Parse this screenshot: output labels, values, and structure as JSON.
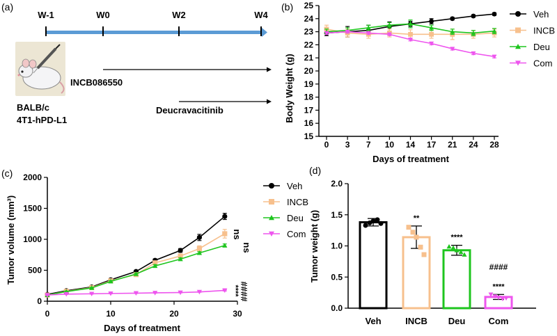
{
  "panel_labels": {
    "a": "(a)",
    "b": "(b)",
    "c": "(c)",
    "d": "(d)"
  },
  "colors": {
    "veh": "#000000",
    "incb": "#f7c08d",
    "deu": "#1ec51e",
    "com": "#ee55ee",
    "timeline": "#5b9bd5"
  },
  "icons": {
    "mouse": "mouse-with-syringe-icon"
  },
  "panel_a": {
    "timeline_labels": [
      "W-1",
      "W0",
      "W2",
      "W4"
    ],
    "mouse_text": [
      "BALB/c",
      "4T1-hPD-L1"
    ],
    "drug1": "INCB086550",
    "drug2": "Deucravacitinib"
  },
  "chart_data": [
    {
      "id": "b",
      "type": "line",
      "title": "",
      "xlabel": "Days of treatment",
      "ylabel": "Body Weight (g)",
      "x": [
        0,
        3,
        7,
        10,
        14,
        17,
        21,
        24,
        28
      ],
      "xticks": [
        "0",
        "3",
        "7",
        "10",
        "14",
        "17",
        "21",
        "24",
        "28"
      ],
      "ylim": [
        15,
        25
      ],
      "yticks": [
        15,
        16,
        17,
        18,
        19,
        20,
        21,
        22,
        23,
        24,
        25
      ],
      "legend": "right",
      "series": [
        {
          "name": "Veh",
          "values": [
            22.9,
            23.0,
            23.1,
            23.4,
            23.6,
            23.8,
            24.0,
            24.2,
            24.35
          ],
          "err": [
            0.2,
            0.4,
            0.4,
            0.35,
            0.2,
            0.2,
            0.1,
            0.1,
            0.1
          ]
        },
        {
          "name": "INCB",
          "values": [
            23.2,
            22.9,
            22.8,
            22.9,
            22.8,
            22.8,
            22.8,
            22.8,
            22.9
          ],
          "err": [
            0.3,
            0.3,
            0.3,
            0.3,
            0.35,
            0.3,
            0.4,
            0.3,
            0.3
          ]
        },
        {
          "name": "Deu",
          "values": [
            23.0,
            23.1,
            23.3,
            23.5,
            23.6,
            23.3,
            23.0,
            22.9,
            23.05
          ],
          "err": [
            0.2,
            0.2,
            0.2,
            0.2,
            0.3,
            0.2,
            0.2,
            0.2,
            0.2
          ]
        },
        {
          "name": "Com",
          "values": [
            22.9,
            23.0,
            22.9,
            22.8,
            22.4,
            22.1,
            21.7,
            21.35,
            21.1
          ],
          "err": [
            0.1,
            0.1,
            0.1,
            0.1,
            0.1,
            0.1,
            0.1,
            0.1,
            0.1
          ]
        }
      ]
    },
    {
      "id": "c",
      "type": "line",
      "title": "",
      "xlabel": "Days of treatment",
      "ylabel": "Tumor volume (mm³)",
      "x": [
        0,
        3,
        7,
        10,
        14,
        17,
        21,
        24,
        28
      ],
      "xlim": [
        0,
        30
      ],
      "xticks": [
        0,
        10,
        20,
        30
      ],
      "ylim": [
        0,
        2000
      ],
      "yticks": [
        0,
        500,
        1000,
        1500,
        2000
      ],
      "legend": "right",
      "series": [
        {
          "name": "Veh",
          "values": [
            110,
            170,
            230,
            345,
            480,
            660,
            820,
            1030,
            1370
          ],
          "err": [
            10,
            10,
            15,
            20,
            20,
            25,
            30,
            50,
            50
          ]
        },
        {
          "name": "INCB",
          "values": [
            100,
            160,
            220,
            330,
            430,
            620,
            730,
            850,
            1090
          ],
          "err": [
            10,
            10,
            15,
            20,
            20,
            25,
            30,
            45,
            70
          ]
        },
        {
          "name": "Deu",
          "values": [
            100,
            155,
            215,
            320,
            440,
            570,
            680,
            780,
            900
          ],
          "err": [
            10,
            10,
            10,
            15,
            15,
            20,
            20,
            20,
            25
          ]
        },
        {
          "name": "Com",
          "values": [
            100,
            115,
            120,
            125,
            130,
            135,
            140,
            150,
            175
          ],
          "err": [
            5,
            5,
            5,
            5,
            5,
            5,
            5,
            5,
            10
          ]
        }
      ],
      "annotations": [
        "ns",
        "ns",
        "****",
        "####"
      ]
    },
    {
      "id": "d",
      "type": "bar",
      "title": "",
      "xlabel": "",
      "ylabel": "Tumor weight (g)",
      "categories": [
        "Veh",
        "INCB",
        "Deu",
        "Com"
      ],
      "values": [
        1.38,
        1.14,
        0.93,
        0.18
      ],
      "err": [
        0.06,
        0.18,
        0.08,
        0.04
      ],
      "points": [
        [
          1.33,
          1.37,
          1.4,
          1.42,
          1.36
        ],
        [
          1.3,
          1.22,
          1.14,
          0.98,
          0.86
        ],
        [
          0.99,
          0.97,
          0.93,
          0.9,
          0.86
        ],
        [
          0.22,
          0.19,
          0.17,
          0.15,
          0.16
        ]
      ],
      "ylim": [
        0,
        2.0
      ],
      "yticks": [
        "0.0",
        "0.5",
        "1.0",
        "1.5",
        "2.0"
      ],
      "significance": [
        "",
        "**",
        "****",
        "****"
      ],
      "extra_annotation": "####"
    }
  ]
}
